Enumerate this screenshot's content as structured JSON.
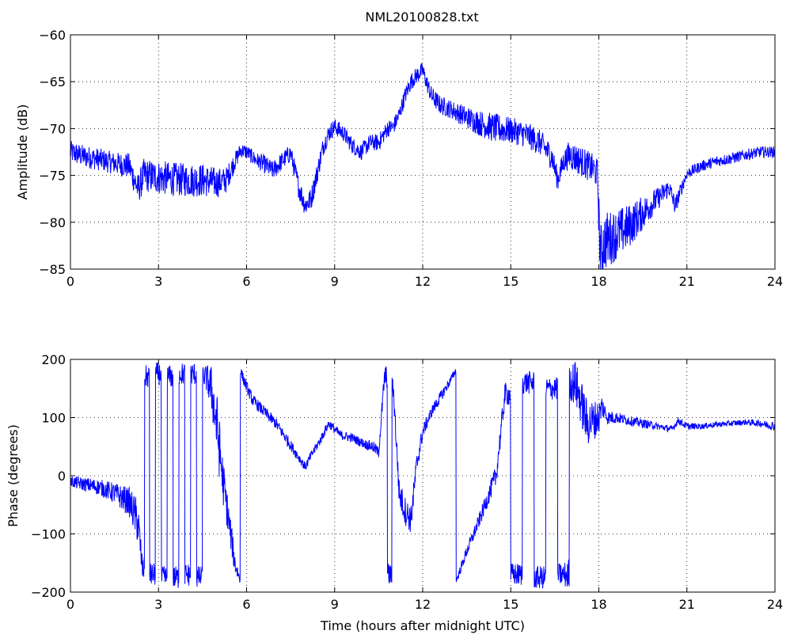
{
  "figure": {
    "title": "NML20100828.txt",
    "line_color": "#0000ff"
  },
  "chart_data": [
    {
      "type": "line",
      "title": "NML20100828.txt",
      "xlabel": "",
      "ylabel": "Amplitude (dB)",
      "xlim": [
        0,
        24
      ],
      "ylim": [
        -85,
        -60
      ],
      "xticks": [
        0,
        3,
        6,
        9,
        12,
        15,
        18,
        21,
        24
      ],
      "yticks": [
        -85,
        -80,
        -75,
        -70,
        -65,
        -60
      ],
      "grid": true,
      "series": [
        {
          "color": "#0000ff",
          "x": [
            0,
            0.5,
            1,
            1.5,
            2,
            2.3,
            2.5,
            3,
            3.5,
            4,
            4.5,
            5,
            5.3,
            5.6,
            5.8,
            6,
            6.3,
            6.6,
            6.9,
            7.2,
            7.5,
            7.8,
            8.0,
            8.2,
            8.4,
            8.6,
            8.8,
            9.0,
            9.3,
            9.6,
            9.9,
            10.2,
            10.5,
            10.8,
            11.0,
            11.2,
            11.4,
            11.6,
            11.8,
            12.0,
            12.1,
            12.3,
            12.6,
            13.0,
            13.5,
            14.0,
            14.5,
            15.0,
            15.5,
            16.0,
            16.4,
            16.6,
            16.8,
            17.0,
            17.4,
            17.8,
            17.95,
            18.05,
            18.2,
            18.5,
            19.0,
            19.5,
            20.0,
            20.4,
            20.6,
            20.8,
            21.0,
            21.5,
            22.0,
            22.5,
            23.0,
            23.5,
            24.0
          ],
          "y": [
            -72.5,
            -73,
            -73.3,
            -73.7,
            -74,
            -76.5,
            -75,
            -75.2,
            -75.4,
            -75.5,
            -75.5,
            -75.8,
            -75.5,
            -73.5,
            -72.3,
            -72.5,
            -73.3,
            -73.8,
            -74.5,
            -73.5,
            -72.6,
            -76.5,
            -78.2,
            -77.5,
            -74.8,
            -72,
            -70.5,
            -69.8,
            -70.5,
            -71.8,
            -72.5,
            -71.5,
            -71.5,
            -70,
            -69.8,
            -68.5,
            -66.5,
            -65,
            -64.3,
            -63.8,
            -64.8,
            -66.5,
            -67.5,
            -68,
            -68.8,
            -69.5,
            -70,
            -70.2,
            -70.6,
            -71.5,
            -73,
            -75.5,
            -73.5,
            -72.8,
            -73.5,
            -74.3,
            -74.8,
            -83.5,
            -82,
            -81.5,
            -80.5,
            -79,
            -77.5,
            -76.3,
            -78.3,
            -76.5,
            -74.8,
            -74,
            -73.5,
            -73.2,
            -72.8,
            -72.5,
            -72.5
          ],
          "noise": [
            1.2,
            1.2,
            1.2,
            1.2,
            1.4,
            1.6,
            1.8,
            1.8,
            1.8,
            1.8,
            1.8,
            1.6,
            1.4,
            1.0,
            0.8,
            0.8,
            0.8,
            1.0,
            1.0,
            1.0,
            1.0,
            1.2,
            1.2,
            1.2,
            1.2,
            1.0,
            1.0,
            0.9,
            0.9,
            0.9,
            0.9,
            0.9,
            0.9,
            0.9,
            0.9,
            0.9,
            0.9,
            0.9,
            0.9,
            0.9,
            0.9,
            1.0,
            1.0,
            1.0,
            1.2,
            1.4,
            1.6,
            1.4,
            1.4,
            1.4,
            1.4,
            1.2,
            1.2,
            1.6,
            1.6,
            1.6,
            1.6,
            3.2,
            3.2,
            2.8,
            2.4,
            1.8,
            1.2,
            1.0,
            1.0,
            0.8,
            0.6,
            0.6,
            0.6,
            0.6,
            0.6,
            0.6,
            0.6
          ]
        }
      ]
    },
    {
      "type": "line",
      "title": "",
      "xlabel": "Time (hours after midnight UTC)",
      "ylabel": "Phase (degrees)",
      "xlim": [
        0,
        24
      ],
      "ylim": [
        -200,
        200
      ],
      "xticks": [
        0,
        3,
        6,
        9,
        12,
        15,
        18,
        21,
        24
      ],
      "yticks": [
        -200,
        -100,
        0,
        100,
        200
      ],
      "grid": true,
      "series": [
        {
          "color": "#0000ff",
          "x": [
            0,
            0.5,
            1,
            1.5,
            2,
            2.3,
            2.45,
            2.6,
            2.8,
            3,
            3.2,
            3.4,
            3.6,
            3.8,
            4,
            4.2,
            4.4,
            4.6,
            4.8,
            5.0,
            5.2,
            5.4,
            5.6,
            5.78,
            5.8,
            5.9,
            6.2,
            6.6,
            7.0,
            7.4,
            7.8,
            8.0,
            8.2,
            8.5,
            8.8,
            9.2,
            9.6,
            10.0,
            10.3,
            10.5,
            10.7,
            10.9,
            11.0,
            11.2,
            11.4,
            11.6,
            11.8,
            12.0,
            12.3,
            12.6,
            12.9,
            13.12,
            13.15,
            13.5,
            13.9,
            14.2,
            14.5,
            14.8,
            15.2,
            15.6,
            16.0,
            16.4,
            16.8,
            17.2,
            17.6,
            18.0,
            18.1,
            18.3,
            18.6,
            19.0,
            19.5,
            20.0,
            20.5,
            20.7,
            21.0,
            21.5,
            22.0,
            22.5,
            23.0,
            23.5,
            24.0
          ],
          "y": [
            -10,
            -15,
            -20,
            -30,
            -45,
            -80,
            -160,
            170,
            -170,
            175,
            -175,
            170,
            -175,
            175,
            -170,
            175,
            -175,
            170,
            150,
            80,
            -10,
            -80,
            -150,
            -180,
            180,
            165,
            130,
            110,
            90,
            60,
            30,
            15,
            35,
            60,
            90,
            70,
            65,
            55,
            50,
            40,
            170,
            -170,
            150,
            -30,
            -60,
            -75,
            20,
            75,
            110,
            135,
            160,
            180,
            -180,
            -130,
            -80,
            -40,
            0,
            140,
            -170,
            160,
            -175,
            150,
            -170,
            160,
            90,
            100,
            120,
            100,
            100,
            95,
            90,
            85,
            80,
            95,
            85,
            85,
            88,
            90,
            92,
            90,
            85
          ],
          "noise": [
            10,
            12,
            14,
            18,
            25,
            40,
            20,
            20,
            20,
            20,
            20,
            20,
            20,
            20,
            20,
            20,
            20,
            20,
            40,
            60,
            40,
            30,
            20,
            8,
            8,
            10,
            10,
            10,
            10,
            10,
            8,
            8,
            8,
            8,
            8,
            8,
            8,
            8,
            10,
            10,
            20,
            20,
            20,
            25,
            25,
            25,
            20,
            12,
            10,
            10,
            8,
            6,
            6,
            10,
            12,
            15,
            20,
            20,
            20,
            20,
            20,
            20,
            20,
            40,
            40,
            30,
            20,
            12,
            10,
            8,
            8,
            6,
            6,
            6,
            6,
            5,
            5,
            5,
            5,
            6,
            8
          ]
        }
      ]
    }
  ]
}
